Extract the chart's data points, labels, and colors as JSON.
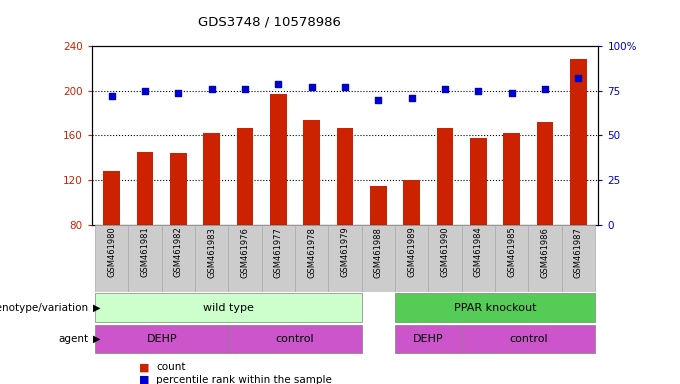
{
  "title": "GDS3748 / 10578986",
  "samples": [
    "GSM461980",
    "GSM461981",
    "GSM461982",
    "GSM461983",
    "GSM461976",
    "GSM461977",
    "GSM461978",
    "GSM461979",
    "GSM461988",
    "GSM461989",
    "GSM461990",
    "GSM461984",
    "GSM461985",
    "GSM461986",
    "GSM461987"
  ],
  "bar_values": [
    128,
    145,
    144,
    162,
    167,
    197,
    174,
    167,
    115,
    120,
    167,
    158,
    162,
    172,
    228
  ],
  "dot_values": [
    72,
    75,
    74,
    76,
    76,
    79,
    77,
    77,
    70,
    71,
    76,
    75,
    74,
    76,
    82
  ],
  "ylim_left": [
    80,
    240
  ],
  "ylim_right": [
    0,
    100
  ],
  "yticks_left": [
    80,
    120,
    160,
    200,
    240
  ],
  "yticks_right": [
    0,
    25,
    50,
    75,
    100
  ],
  "bar_color": "#cc2200",
  "dot_color": "#0000cc",
  "bar_width": 0.5,
  "bg_color": "#ffffff",
  "genotype_labels": [
    "wild type",
    "PPAR knockout"
  ],
  "genotype_color_light": "#ccffcc",
  "genotype_color_dark": "#55cc55",
  "agent_color": "#cc55cc",
  "legend_count_color": "#cc2200",
  "legend_dot_color": "#0000cc",
  "label_bg": "#cccccc",
  "label_border": "#aaaaaa"
}
